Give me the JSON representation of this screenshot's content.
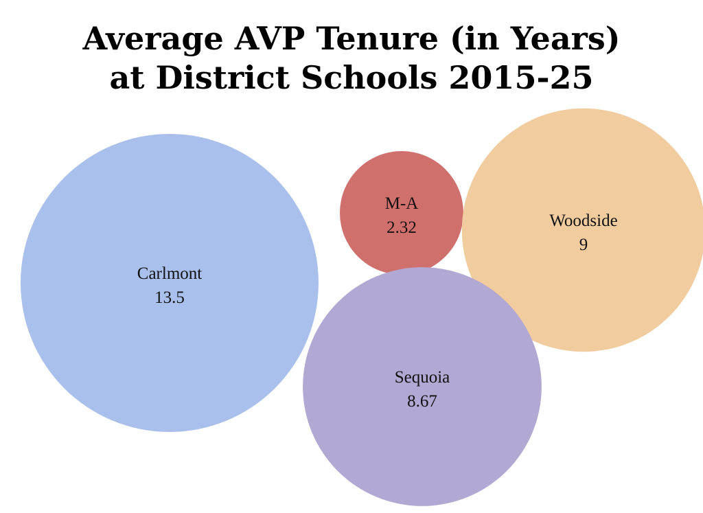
{
  "chart_data": {
    "type": "bubble",
    "title_lines": [
      "Average AVP Tenure (in Years)",
      "at District Schools 2015-25"
    ],
    "items": [
      {
        "name": "Carlmont",
        "value_label": "13.5",
        "value": 13.5,
        "color": "#a9c0ec"
      },
      {
        "name": "M-A",
        "value_label": "2.32",
        "value": 2.32,
        "color": "#d0706c"
      },
      {
        "name": "Woodside",
        "value_label": "9",
        "value": 9,
        "color": "#f0cc9e"
      },
      {
        "name": "Sequoia",
        "value_label": "8.67",
        "value": 8.67,
        "color": "#b1a8d3"
      }
    ]
  }
}
